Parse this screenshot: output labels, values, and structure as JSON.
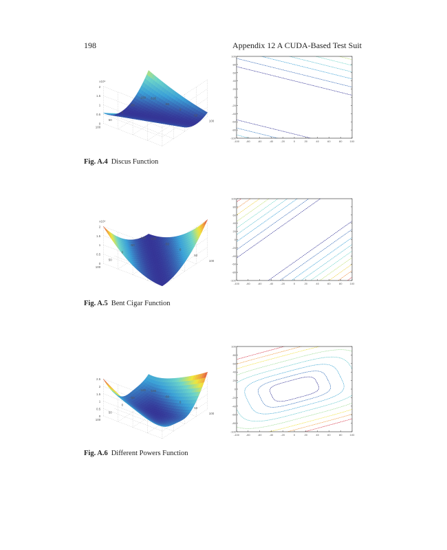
{
  "header": {
    "page_number": "198",
    "running_title": "Appendix 12  A CUDA-Based Test Suit"
  },
  "figures": [
    {
      "label": "Fig. A.4",
      "caption": "Discus Function",
      "function": "discus",
      "surface": {
        "z_exponent": "x10⁹",
        "z_ticks": [
          "0",
          "0.5",
          "1",
          "1.5",
          "2"
        ],
        "xy_ticks": [
          "-100",
          "-50",
          "0",
          "50",
          "100"
        ]
      },
      "contour": {
        "x_ticks": [
          "-100",
          "-80",
          "-60",
          "-40",
          "-20",
          "0",
          "20",
          "40",
          "60",
          "80",
          "100"
        ],
        "y_ticks": [
          "100",
          "80",
          "60",
          "40",
          "20",
          "0",
          "-20",
          "-40",
          "-60",
          "-80",
          "-100"
        ]
      }
    },
    {
      "label": "Fig. A.5",
      "caption": "Bent Cigar Function",
      "function": "bentcigar",
      "surface": {
        "z_exponent": "x10⁹",
        "z_ticks": [
          "0",
          "0.5",
          "1",
          "1.5",
          "2"
        ],
        "xy_ticks": [
          "-100",
          "-50",
          "0",
          "50",
          "100"
        ]
      },
      "contour": {
        "x_ticks": [
          "-100",
          "-80",
          "-60",
          "-40",
          "-20",
          "0",
          "20",
          "40",
          "60",
          "80",
          "100"
        ],
        "y_ticks": [
          "100",
          "80",
          "60",
          "40",
          "20",
          "0",
          "-20",
          "-40",
          "-60",
          "-80",
          "-100"
        ]
      }
    },
    {
      "label": "Fig. A.6",
      "caption": "Different Powers Function",
      "function": "diffpowers",
      "surface": {
        "z_exponent": "",
        "z_ticks": [
          "0",
          "0.5",
          "1",
          "1.5",
          "2",
          "2.5"
        ],
        "xy_ticks": [
          "-100",
          "-50",
          "0",
          "50",
          "100"
        ]
      },
      "contour": {
        "x_ticks": [
          "-100",
          "-80",
          "-60",
          "-40",
          "-20",
          "0",
          "20",
          "40",
          "60",
          "80",
          "100"
        ],
        "y_ticks": [
          "100",
          "80",
          "60",
          "40",
          "20",
          "0",
          "-20",
          "-40",
          "-60",
          "-80",
          "-100"
        ]
      }
    }
  ]
}
